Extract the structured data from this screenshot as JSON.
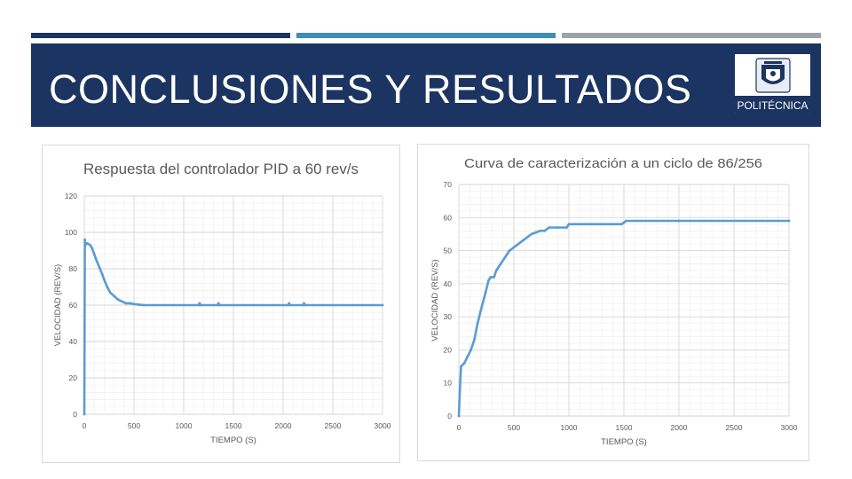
{
  "slide": {
    "title": "CONCLUSIONES Y RESULTADOS",
    "bar_colors": [
      "#1b3462",
      "#3e8cba",
      "#9ea3a8"
    ],
    "header_color": "#1b3462",
    "line_color": "#5b9bd5"
  },
  "logo": {
    "text": "POLITÉCNICA",
    "icon": "university-crest-icon"
  },
  "chart_data": [
    {
      "type": "line",
      "title": "Respuesta del controlador PID a 60 rev/s",
      "xlabel": "TIEMPO (S)",
      "ylabel": "VELOCIDAD (REV/S)",
      "xlim": [
        0,
        3000
      ],
      "ylim": [
        0,
        120
      ],
      "xticks": [
        0,
        500,
        1000,
        1500,
        2000,
        2500,
        3000
      ],
      "yticks": [
        0,
        20,
        40,
        60,
        80,
        100,
        120
      ],
      "grid": true,
      "series": [
        {
          "x": [
            0,
            5,
            10,
            30,
            60,
            80,
            100,
            120,
            150,
            180,
            200,
            230,
            260,
            300,
            340,
            380,
            420,
            460,
            500,
            550,
            600,
            1150,
            1160,
            1170,
            1340,
            1350,
            1360,
            2050,
            2060,
            2070,
            2200,
            2210,
            2220,
            3000
          ],
          "y": [
            0,
            96,
            93,
            94,
            93,
            91,
            88,
            85,
            81,
            77,
            74,
            70,
            67,
            65,
            63,
            62,
            61,
            61,
            60.6,
            60.3,
            60,
            60,
            61,
            60,
            60,
            61,
            60,
            60,
            61,
            60,
            60,
            61,
            60,
            60
          ]
        }
      ]
    },
    {
      "type": "line",
      "title": "Curva de caracterización a un ciclo de 86/256",
      "xlabel": "TIEMPO (S)",
      "ylabel": "VELOCIDAD (REV/S)",
      "xlim": [
        0,
        3000
      ],
      "ylim": [
        0,
        70
      ],
      "xticks": [
        0,
        500,
        1000,
        1500,
        2000,
        2500,
        3000
      ],
      "yticks": [
        0,
        10,
        20,
        30,
        40,
        50,
        60,
        70
      ],
      "grid": true,
      "series": [
        {
          "x": [
            0,
            10,
            20,
            50,
            80,
            110,
            140,
            170,
            200,
            240,
            270,
            290,
            320,
            340,
            380,
            420,
            460,
            500,
            540,
            580,
            620,
            660,
            700,
            740,
            780,
            820,
            900,
            980,
            1000,
            1200,
            1480,
            1500,
            1520,
            2000,
            3000
          ],
          "y": [
            0,
            8,
            15,
            16,
            18,
            20,
            23,
            28,
            32,
            37,
            41,
            42,
            42,
            44,
            46,
            48,
            50,
            51,
            52,
            53,
            54,
            55,
            55.5,
            56,
            56,
            57,
            57,
            57,
            58,
            58,
            58,
            58.5,
            59,
            59,
            59
          ]
        }
      ]
    }
  ]
}
